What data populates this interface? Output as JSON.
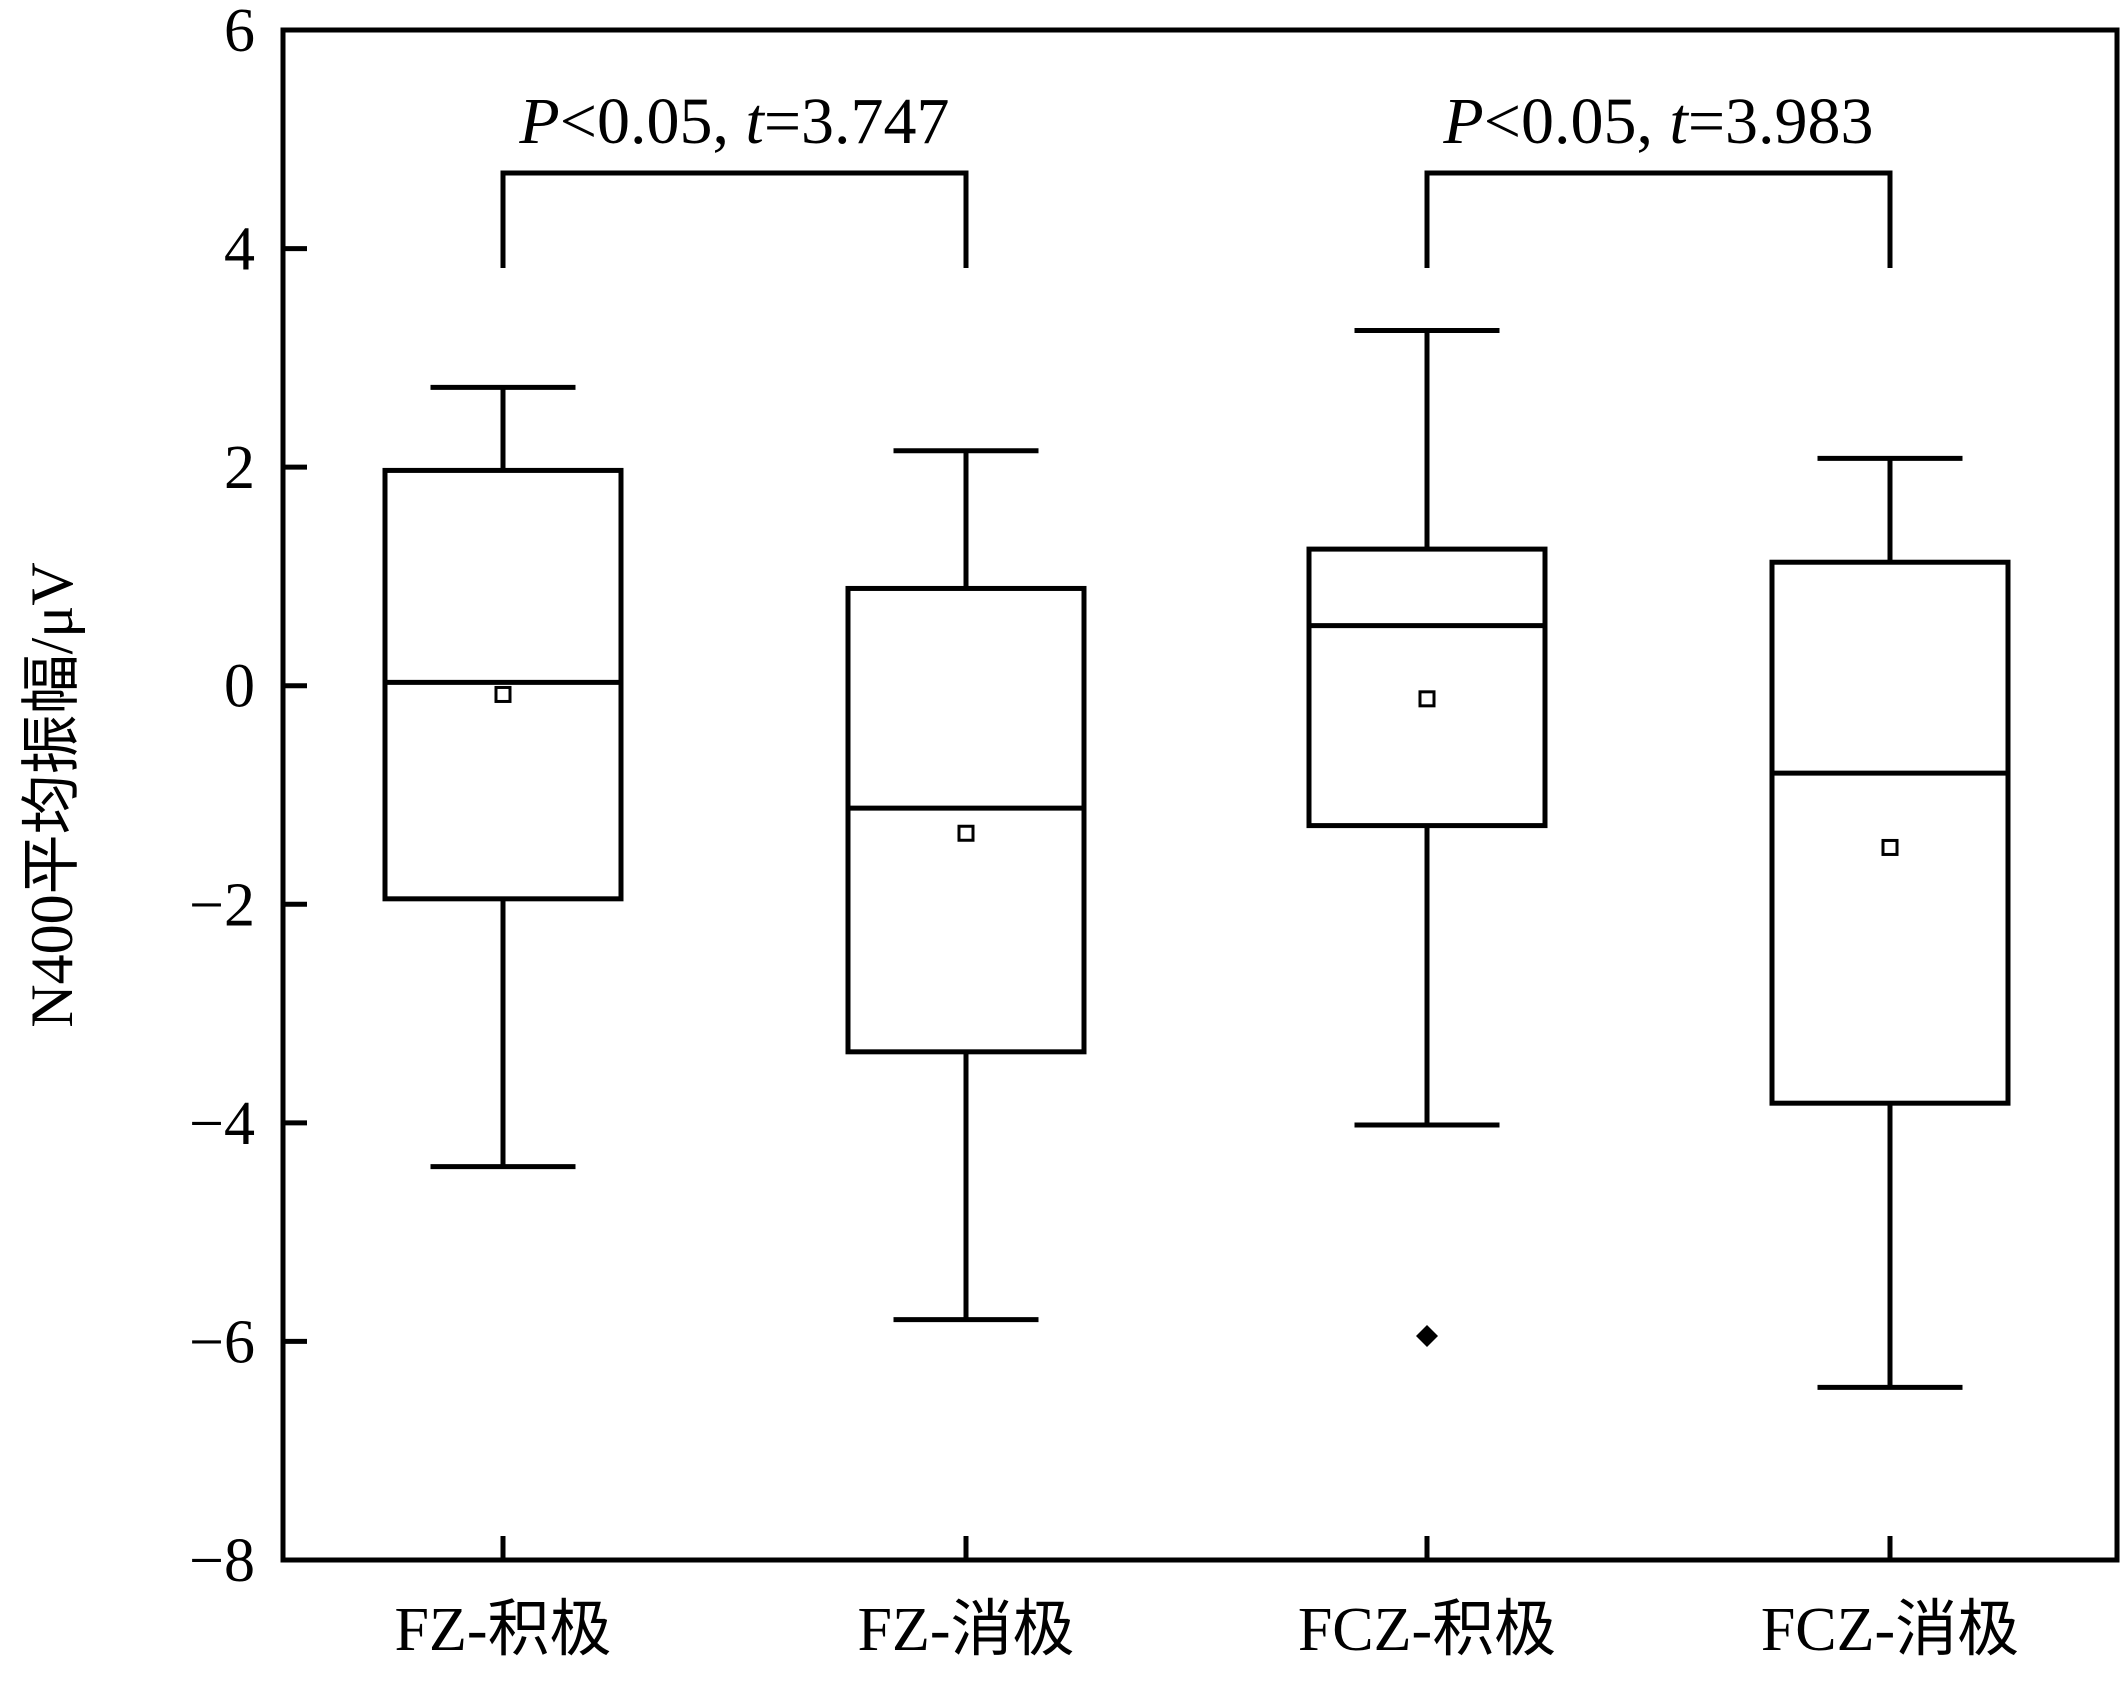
{
  "chart_data": {
    "type": "box",
    "title": "",
    "xlabel": "",
    "ylabel": "N400平均振幅/μV",
    "ylim": [
      -8,
      6
    ],
    "yticks": [
      6,
      4,
      2,
      0,
      -2,
      -4,
      -6,
      -8
    ],
    "ytick_labels": [
      "6",
      "4",
      "2",
      "0",
      "−2",
      "−4",
      "−6",
      "−8"
    ],
    "grid": false,
    "categories": [
      "FZ-积极",
      "FZ-消极",
      "FCZ-积极",
      "FCZ-消极"
    ],
    "boxes": [
      {
        "category": "FZ-积极",
        "whisker_low": -4.4,
        "q1": -1.95,
        "median": 0.03,
        "q3": 1.97,
        "whisker_high": 2.73,
        "mean": -0.08,
        "outliers": []
      },
      {
        "category": "FZ-消极",
        "whisker_low": -5.8,
        "q1": -3.35,
        "median": -1.12,
        "q3": 0.89,
        "whisker_high": 2.15,
        "mean": -1.35,
        "outliers": []
      },
      {
        "category": "FCZ-积极",
        "whisker_low": -4.02,
        "q1": -1.28,
        "median": 0.55,
        "q3": 1.25,
        "whisker_high": 3.25,
        "mean": -0.12,
        "outliers": [
          -5.95
        ]
      },
      {
        "category": "FCZ-消极",
        "whisker_low": -6.42,
        "q1": -3.82,
        "median": -0.8,
        "q3": 1.13,
        "whisker_high": 2.08,
        "mean": -1.48,
        "outliers": []
      }
    ],
    "annotations": [
      {
        "between": [
          "FZ-积极",
          "FZ-消极"
        ],
        "italic_p": "P",
        "p_text": "<0.05, ",
        "italic_t": "t",
        "t_text": "=3.747"
      },
      {
        "between": [
          "FCZ-积极",
          "FCZ-消极"
        ],
        "italic_p": "P",
        "p_text": "<0.05, ",
        "italic_t": "t",
        "t_text": "=3.983"
      }
    ]
  }
}
